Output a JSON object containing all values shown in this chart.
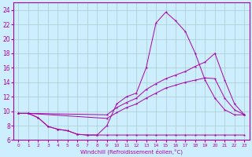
{
  "xlabel": "Windchill (Refroidissement éolien,°C)",
  "background_color": "#cceeff",
  "grid_color": "#aacccc",
  "line_color": "#aa00aa",
  "xlim": [
    -0.5,
    23.5
  ],
  "ylim": [
    6,
    25
  ],
  "xticks": [
    0,
    1,
    2,
    3,
    4,
    5,
    6,
    7,
    8,
    9,
    10,
    11,
    12,
    13,
    14,
    15,
    16,
    17,
    18,
    19,
    20,
    21,
    22,
    23
  ],
  "yticks": [
    6,
    8,
    10,
    12,
    14,
    16,
    18,
    20,
    22,
    24
  ],
  "s1_x": [
    0,
    1,
    2,
    3,
    4,
    5,
    6,
    7,
    8,
    9,
    10,
    11,
    12,
    13,
    14,
    15,
    16,
    17,
    18,
    19,
    20,
    21,
    22,
    23
  ],
  "s1_y": [
    9.7,
    9.7,
    9.1,
    7.9,
    7.5,
    7.3,
    6.8,
    6.7,
    6.7,
    6.7,
    6.7,
    6.7,
    6.7,
    6.7,
    6.7,
    6.7,
    6.7,
    6.7,
    6.7,
    6.7,
    6.7,
    6.7,
    6.7,
    6.7
  ],
  "s2_x": [
    0,
    1,
    2,
    3,
    4,
    5,
    6,
    7,
    8,
    9,
    10,
    11,
    12,
    13,
    14,
    15,
    16,
    17,
    18,
    19,
    20,
    21,
    22,
    23
  ],
  "s2_y": [
    9.7,
    9.7,
    9.1,
    7.9,
    7.5,
    7.3,
    6.8,
    6.7,
    6.7,
    8.0,
    11.0,
    12.0,
    12.5,
    16.0,
    22.2,
    23.7,
    22.5,
    21.0,
    18.0,
    14.3,
    11.8,
    10.2,
    9.5,
    9.5
  ],
  "s3_x": [
    0,
    1,
    9,
    10,
    11,
    12,
    13,
    14,
    15,
    16,
    17,
    18,
    19,
    20,
    21,
    22,
    23
  ],
  "s3_y": [
    9.7,
    9.7,
    9.5,
    10.5,
    11.2,
    11.8,
    13.0,
    13.8,
    14.5,
    15.0,
    15.5,
    16.2,
    16.8,
    18.0,
    14.3,
    11.0,
    9.5
  ],
  "s4_x": [
    0,
    1,
    9,
    10,
    11,
    12,
    13,
    14,
    15,
    16,
    17,
    18,
    19,
    20,
    21,
    22,
    23
  ],
  "s4_y": [
    9.7,
    9.7,
    9.0,
    9.8,
    10.5,
    11.0,
    11.8,
    12.5,
    13.2,
    13.6,
    14.0,
    14.3,
    14.6,
    14.5,
    11.8,
    10.2,
    9.5
  ]
}
